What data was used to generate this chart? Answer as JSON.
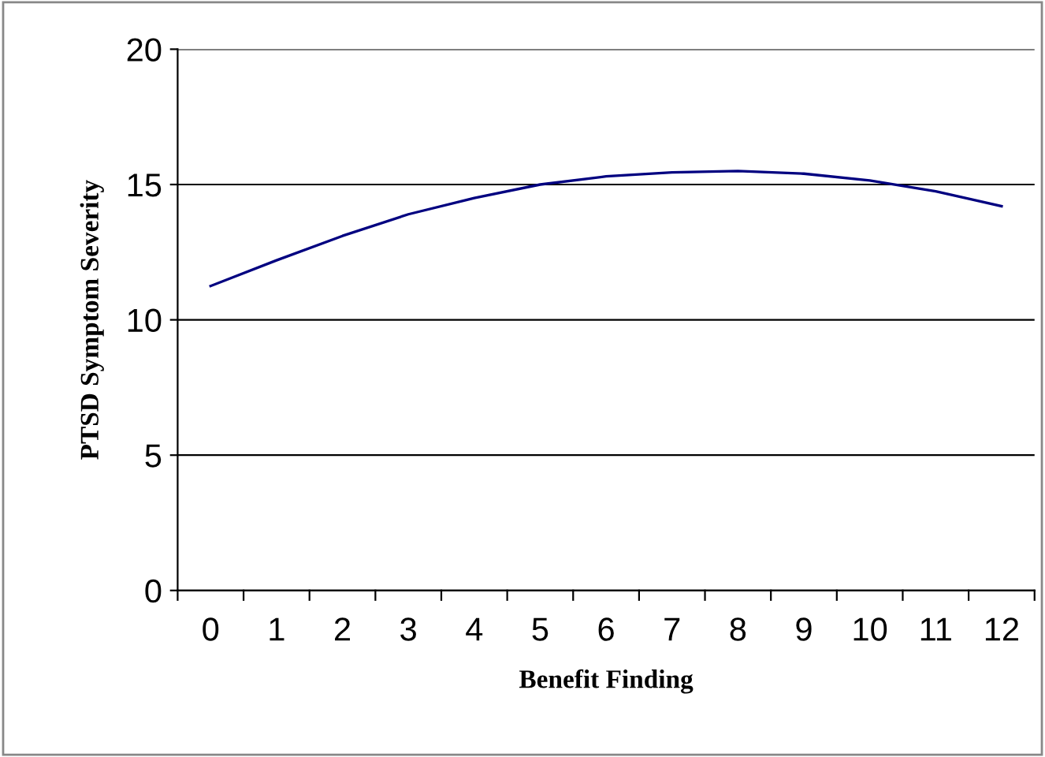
{
  "chart_data": {
    "type": "line",
    "xlabel": "Benefit Finding",
    "ylabel": "PTSD Symptom Severity",
    "categories": [
      "0",
      "1",
      "2",
      "3",
      "4",
      "5",
      "6",
      "7",
      "8",
      "9",
      "10",
      "11",
      "12"
    ],
    "series": [
      {
        "color": "#000080",
        "values": [
          11.25,
          12.2,
          13.1,
          13.9,
          14.5,
          15.0,
          15.3,
          15.45,
          15.5,
          15.4,
          15.15,
          14.75,
          14.2
        ]
      }
    ],
    "ylim": [
      0,
      20
    ],
    "yticks": [
      0,
      5,
      10,
      15,
      20
    ],
    "grid": "y",
    "marker": "none",
    "line_style": "solid"
  }
}
